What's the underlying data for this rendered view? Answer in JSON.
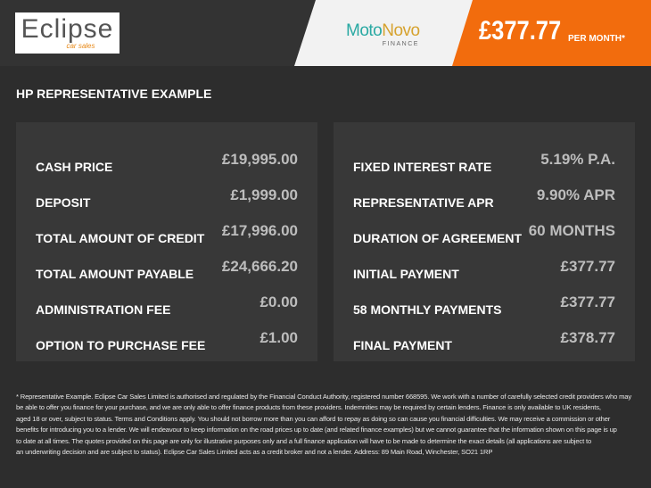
{
  "header": {
    "dealer_logo": "Eclipse car sales",
    "finance_logo_main_a": "Moto",
    "finance_logo_main_b": "Novo",
    "finance_logo_sub": "FINANCE",
    "monthly_price": "£377.77",
    "per_month": "PER MONTH*",
    "colors": {
      "accent": "#f26c0d",
      "teal": "#2aa9a3"
    }
  },
  "title": "HP REPRESENTATIVE EXAMPLE",
  "left_panel": [
    {
      "label": "CASH PRICE",
      "value": "£19,995.00"
    },
    {
      "label": "DEPOSIT",
      "value": "£1,999.00"
    },
    {
      "label": "TOTAL AMOUNT OF CREDIT",
      "value": "£17,996.00"
    },
    {
      "label": "TOTAL AMOUNT PAYABLE",
      "value": "£24,666.20"
    },
    {
      "label": "ADMINISTRATION FEE",
      "value": "£0.00"
    },
    {
      "label": "OPTION TO PURCHASE FEE",
      "value": "£1.00"
    }
  ],
  "right_panel": [
    {
      "label": "FIXED INTEREST RATE",
      "value": "5.19% P.A."
    },
    {
      "label": "REPRESENTATIVE APR",
      "value": "9.90% APR"
    },
    {
      "label": "DURATION OF AGREEMENT",
      "value": "60 MONTHS"
    },
    {
      "label": "INITIAL PAYMENT",
      "value": "£377.77"
    },
    {
      "label": "58 MONTHLY PAYMENTS",
      "value": "£377.77"
    },
    {
      "label": "FINAL PAYMENT",
      "value": "£378.77"
    }
  ],
  "disclaimer": [
    "* Representative Example. Eclipse Car Sales Limited is authorised and regulated by the Financial Conduct Authority, registered number 668595. We work with a number of carefully selected credit providers who may",
    "be able to offer you finance for your purchase, and we are only able to offer finance products from these providers. Indemnities may be required by certain lenders. Finance is only available to UK residents,",
    "aged 18 or over, subject to status. Terms and Conditions apply. You should not borrow more than you can afford to repay as doing so can cause you financial difficulties. We may receive a commission or other",
    "benefits for introducing you to a lender. We will endeavour to keep information on the road prices up to date (and related finance examples) but we cannot guarantee that the information shown on this page is up",
    "to date at all times. The quotes provided on this page are only for illustrative purposes only and a full finance application will have to be made to determine the exact details (all applications are subject to",
    "an underwriting decision and are subject to status). Eclipse Car Sales Limited acts as a credit broker and not a lender. Address: 89 Main Road, Winchester, SO21 1RP"
  ]
}
